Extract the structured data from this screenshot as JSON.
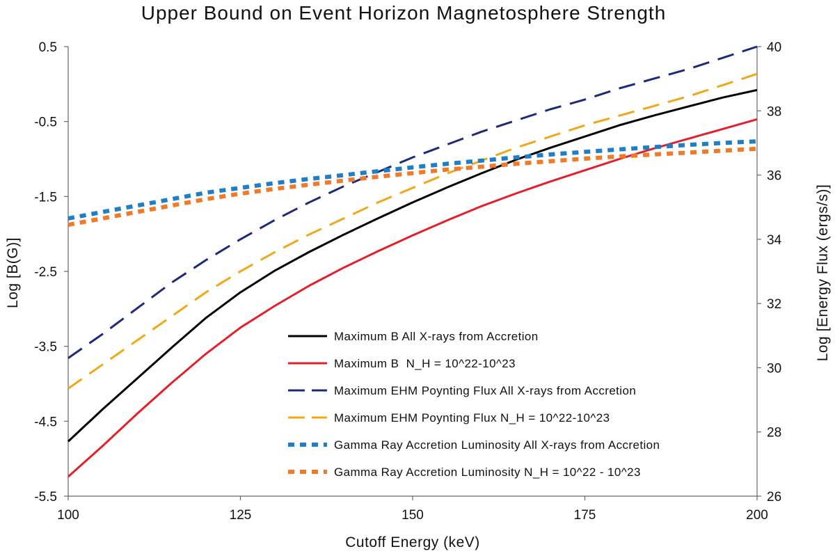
{
  "chart_data": {
    "type": "line",
    "title": "Upper Bound on Event Horizon Magnetosphere Strength",
    "xlabel": "Cutoff Energy (keV)",
    "ylabel_left": "Log [B(G)]",
    "ylabel_right": "Log [Energy Flux (ergs/s)]",
    "xlim": [
      100,
      200
    ],
    "ylim_left": [
      -5.5,
      0.5
    ],
    "ylim_right": [
      26,
      40
    ],
    "xticks": [
      100,
      125,
      150,
      175,
      200
    ],
    "yticks_left": [
      "0.5",
      "-0.5",
      "-1.5",
      "-2.5",
      "-3.5",
      "-4.5",
      "-5.5"
    ],
    "yticks_right": [
      "40",
      "38",
      "36",
      "34",
      "32",
      "30",
      "28",
      "26"
    ],
    "legend_position": "lower-right",
    "series": [
      {
        "name": "Maximum B All X-rays from Accretion",
        "axis": "left",
        "color": "#000000",
        "style": "solid",
        "x": [
          100,
          105,
          110,
          115,
          120,
          125,
          130,
          135,
          140,
          145,
          150,
          155,
          160,
          165,
          170,
          175,
          180,
          185,
          190,
          195,
          200
        ],
        "y": [
          -4.77,
          -4.34,
          -3.93,
          -3.52,
          -3.12,
          -2.78,
          -2.49,
          -2.24,
          -2.01,
          -1.79,
          -1.58,
          -1.38,
          -1.19,
          -1.01,
          -0.85,
          -0.7,
          -0.55,
          -0.42,
          -0.3,
          -0.18,
          -0.08
        ]
      },
      {
        "name": "Maximum B  N_H = 10^22-10^23",
        "axis": "left",
        "color": "#e3202a",
        "style": "solid",
        "x": [
          100,
          105,
          110,
          115,
          120,
          125,
          130,
          135,
          140,
          145,
          150,
          155,
          160,
          165,
          170,
          175,
          180,
          185,
          190,
          195,
          200
        ],
        "y": [
          -5.24,
          -4.83,
          -4.4,
          -3.99,
          -3.6,
          -3.25,
          -2.96,
          -2.69,
          -2.45,
          -2.23,
          -2.02,
          -1.82,
          -1.63,
          -1.46,
          -1.3,
          -1.15,
          -1.0,
          -0.86,
          -0.73,
          -0.6,
          -0.47
        ]
      },
      {
        "name": "Maximum EHM Poynting Flux All X-rays from Accretion",
        "axis": "right",
        "color": "#1b2a7a",
        "style": "dashed",
        "x": [
          100,
          105,
          110,
          115,
          120,
          125,
          130,
          135,
          140,
          145,
          150,
          155,
          160,
          165,
          170,
          175,
          180,
          185,
          190,
          195,
          200
        ],
        "y": [
          30.3,
          31.05,
          31.85,
          32.65,
          33.35,
          34.0,
          34.6,
          35.15,
          35.65,
          36.1,
          36.55,
          36.95,
          37.35,
          37.7,
          38.05,
          38.35,
          38.7,
          39.0,
          39.3,
          39.65,
          40.0
        ]
      },
      {
        "name": "Maximum EHM Poynting Flux N_H = 10^22-10^23",
        "axis": "right",
        "color": "#f0a818",
        "style": "dashed",
        "x": [
          100,
          105,
          110,
          115,
          120,
          125,
          130,
          135,
          140,
          145,
          150,
          155,
          160,
          165,
          170,
          175,
          180,
          185,
          190,
          195,
          200
        ],
        "y": [
          29.35,
          30.1,
          30.85,
          31.6,
          32.35,
          33.0,
          33.6,
          34.15,
          34.65,
          35.15,
          35.6,
          36.05,
          36.45,
          36.85,
          37.2,
          37.55,
          37.85,
          38.15,
          38.45,
          38.8,
          39.15
        ]
      },
      {
        "name": "Gamma Ray Accretion Luminosity All X-rays from Accretion",
        "axis": "right",
        "color": "#1f7fc6",
        "style": "dotted",
        "x": [
          100,
          105,
          110,
          115,
          120,
          125,
          130,
          135,
          140,
          145,
          150,
          155,
          160,
          165,
          170,
          175,
          180,
          185,
          190,
          195,
          200
        ],
        "y": [
          34.65,
          34.85,
          35.05,
          35.25,
          35.45,
          35.6,
          35.75,
          35.88,
          36.0,
          36.12,
          36.24,
          36.35,
          36.45,
          36.55,
          36.64,
          36.72,
          36.8,
          36.87,
          36.94,
          37.0,
          37.05
        ]
      },
      {
        "name": "Gamma Ray Accretion Luminosity N_H = 10^22 - 10^23",
        "axis": "right",
        "color": "#f07a28",
        "style": "dotted",
        "x": [
          100,
          105,
          110,
          115,
          120,
          125,
          130,
          135,
          140,
          145,
          150,
          155,
          160,
          165,
          170,
          175,
          180,
          185,
          190,
          195,
          200
        ],
        "y": [
          34.45,
          34.65,
          34.85,
          35.05,
          35.25,
          35.42,
          35.57,
          35.7,
          35.83,
          35.95,
          36.06,
          36.17,
          36.26,
          36.35,
          36.43,
          36.51,
          36.58,
          36.64,
          36.7,
          36.76,
          36.82
        ]
      }
    ]
  }
}
